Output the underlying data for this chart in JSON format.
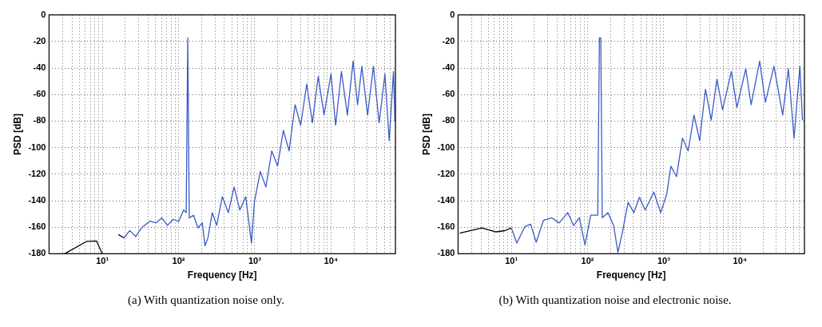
{
  "chart_data": [
    {
      "type": "line",
      "xlabel": "Frequency [Hz]",
      "ylabel": "PSD [dB]",
      "log": "x",
      "grid": true,
      "marker": "none",
      "line_style": "solid",
      "xlim": [
        2,
        70000
      ],
      "ylim": [
        -180,
        0
      ],
      "xticks": [
        {
          "value": 2,
          "label": null
        },
        {
          "value": 3,
          "label": null
        },
        {
          "value": 4,
          "label": null
        },
        {
          "value": 5,
          "label": null
        },
        {
          "value": 6,
          "label": null
        },
        {
          "value": 7,
          "label": null
        },
        {
          "value": 8,
          "label": null
        },
        {
          "value": 9,
          "label": null
        },
        {
          "value": 10,
          "label": "10¹"
        },
        {
          "value": 20,
          "label": null
        },
        {
          "value": 30,
          "label": null
        },
        {
          "value": 40,
          "label": null
        },
        {
          "value": 50,
          "label": null
        },
        {
          "value": 60,
          "label": null
        },
        {
          "value": 70,
          "label": null
        },
        {
          "value": 80,
          "label": null
        },
        {
          "value": 90,
          "label": null
        },
        {
          "value": 100,
          "label": "10²"
        },
        {
          "value": 200,
          "label": null
        },
        {
          "value": 300,
          "label": null
        },
        {
          "value": 400,
          "label": null
        },
        {
          "value": 500,
          "label": null
        },
        {
          "value": 600,
          "label": null
        },
        {
          "value": 700,
          "label": null
        },
        {
          "value": 800,
          "label": null
        },
        {
          "value": 900,
          "label": null
        },
        {
          "value": 1000,
          "label": "10³"
        },
        {
          "value": 2000,
          "label": null
        },
        {
          "value": 3000,
          "label": null
        },
        {
          "value": 4000,
          "label": null
        },
        {
          "value": 5000,
          "label": null
        },
        {
          "value": 6000,
          "label": null
        },
        {
          "value": 7000,
          "label": null
        },
        {
          "value": 8000,
          "label": null
        },
        {
          "value": 9000,
          "label": null
        },
        {
          "value": 10000,
          "label": "10⁴"
        },
        {
          "value": 20000,
          "label": null
        },
        {
          "value": 30000,
          "label": null
        },
        {
          "value": 40000,
          "label": null
        },
        {
          "value": 50000,
          "label": null
        },
        {
          "value": 60000,
          "label": null
        },
        {
          "value": 70000,
          "label": null
        }
      ],
      "yticks": [
        -180,
        -160,
        -140,
        -120,
        -100,
        -80,
        -60,
        -40,
        -20,
        0
      ],
      "annotations": [
        "(a) With quantization noise only."
      ],
      "series": [
        {
          "color": "#000000",
          "x": [
            3.2,
            6.2,
            8.4,
            10,
            11.9,
            16.2,
            19.3
          ],
          "values": [
            -180,
            -170.7,
            -170.4,
            -180,
            null,
            -165.5,
            -168
          ]
        },
        {
          "color": "#3a5bc6",
          "x": [
            19.3,
            22.9,
            27.4,
            32.6,
            42,
            50.6,
            60.4,
            71.5,
            85,
            100,
            117,
            126,
            132,
            134,
            138,
            157,
            180,
            205,
            222,
            243,
            277,
            316,
            375,
            450,
            535,
            636,
            760,
            905,
            990,
            1180,
            1400,
            1670,
            1990,
            2370,
            2820,
            3380,
            4000,
            4800,
            5700,
            6800,
            8100,
            10000,
            11500,
            13700,
            16400,
            19500,
            22300,
            25400,
            30200,
            36000,
            42800,
            51000,
            58000,
            66000,
            69000
          ],
          "values": [
            -168,
            -162.5,
            -167,
            -160.5,
            -155.5,
            -156.7,
            -153,
            -158.6,
            -154,
            -155.7,
            -147,
            -149,
            -17.4,
            -17.4,
            -153,
            -151,
            -160.5,
            -156.7,
            -174,
            -168,
            -149,
            -158.6,
            -137,
            -149,
            -129.7,
            -147,
            -137,
            -172,
            -141,
            -118,
            -129.7,
            -102.5,
            -114,
            -87.1,
            -102.5,
            -67.7,
            -83.2,
            -52.2,
            -81.3,
            -46.4,
            -75.5,
            -44.5,
            -83.2,
            -42.6,
            -75.5,
            -34.8,
            -67.7,
            -38.7,
            -75.5,
            -38.7,
            -81.3,
            -44.5,
            -94.8,
            -42.6,
            -80
          ]
        }
      ]
    },
    {
      "type": "line",
      "xlabel": "Frequency [Hz]",
      "ylabel": "PSD [dB]",
      "log": "x",
      "grid": true,
      "marker": "none",
      "line_style": "solid",
      "xlim": [
        2,
        70000
      ],
      "ylim": [
        -180,
        0
      ],
      "xticks": [
        {
          "value": 2,
          "label": null
        },
        {
          "value": 3,
          "label": null
        },
        {
          "value": 4,
          "label": null
        },
        {
          "value": 5,
          "label": null
        },
        {
          "value": 6,
          "label": null
        },
        {
          "value": 7,
          "label": null
        },
        {
          "value": 8,
          "label": null
        },
        {
          "value": 9,
          "label": null
        },
        {
          "value": 10,
          "label": "10¹"
        },
        {
          "value": 20,
          "label": null
        },
        {
          "value": 30,
          "label": null
        },
        {
          "value": 40,
          "label": null
        },
        {
          "value": 50,
          "label": null
        },
        {
          "value": 60,
          "label": null
        },
        {
          "value": 70,
          "label": null
        },
        {
          "value": 80,
          "label": null
        },
        {
          "value": 90,
          "label": null
        },
        {
          "value": 100,
          "label": "10²"
        },
        {
          "value": 200,
          "label": null
        },
        {
          "value": 300,
          "label": null
        },
        {
          "value": 400,
          "label": null
        },
        {
          "value": 500,
          "label": null
        },
        {
          "value": 600,
          "label": null
        },
        {
          "value": 700,
          "label": null
        },
        {
          "value": 800,
          "label": null
        },
        {
          "value": 900,
          "label": null
        },
        {
          "value": 1000,
          "label": "10³"
        },
        {
          "value": 2000,
          "label": null
        },
        {
          "value": 3000,
          "label": null
        },
        {
          "value": 4000,
          "label": null
        },
        {
          "value": 5000,
          "label": null
        },
        {
          "value": 6000,
          "label": null
        },
        {
          "value": 7000,
          "label": null
        },
        {
          "value": 8000,
          "label": null
        },
        {
          "value": 9000,
          "label": null
        },
        {
          "value": 10000,
          "label": "10⁴"
        },
        {
          "value": 20000,
          "label": null
        },
        {
          "value": 30000,
          "label": null
        },
        {
          "value": 40000,
          "label": null
        },
        {
          "value": 50000,
          "label": null
        },
        {
          "value": 60000,
          "label": null
        },
        {
          "value": 70000,
          "label": null
        }
      ],
      "yticks": [
        -180,
        -160,
        -140,
        -120,
        -100,
        -80,
        -60,
        -40,
        -20,
        0
      ],
      "annotations": [
        "(b) With quantization noise and electronic noise."
      ],
      "series": [
        {
          "color": "#000000",
          "x": [
            2.1,
            4.1,
            6.3,
            8.2,
            10
          ],
          "values": [
            -164.5,
            -160.6,
            -163.5,
            -162.6,
            -160.6
          ]
        },
        {
          "color": "#3a5bc6",
          "x": [
            10,
            11.8,
            15,
            17.9,
            21.2,
            26.4,
            34,
            42.4,
            55,
            65.5,
            78,
            92.5,
            110,
            136,
            143,
            149,
            156,
            185,
            220,
            250,
            285,
            340,
            405,
            480,
            570,
            740,
            910,
            1090,
            1240,
            1470,
            1760,
            2090,
            2490,
            2960,
            3520,
            4190,
            4980,
            5900,
            7700,
            9100,
            11900,
            14000,
            18100,
            21500,
            27900,
            36300,
            43100,
            51200,
            61000,
            66000
          ],
          "values": [
            -160.6,
            -171.9,
            -159.7,
            -157.7,
            -171.3,
            -154.8,
            -152.9,
            -156.8,
            -149,
            -158.7,
            -152.9,
            -173.2,
            -150.9,
            -150.9,
            -17.4,
            -17.4,
            -152.9,
            -149,
            -158.7,
            -179,
            -164.5,
            -141.3,
            -149,
            -137.4,
            -147.1,
            -133.5,
            -149,
            -135.4,
            -114,
            -121.9,
            -92.9,
            -102.5,
            -75.5,
            -94.8,
            -56.1,
            -79.3,
            -48.4,
            -71.6,
            -42.6,
            -69.7,
            -40.6,
            -67.7,
            -34.8,
            -65.8,
            -38.7,
            -75.5,
            -40.6,
            -92.9,
            -38.7,
            -79.3
          ]
        }
      ]
    }
  ]
}
